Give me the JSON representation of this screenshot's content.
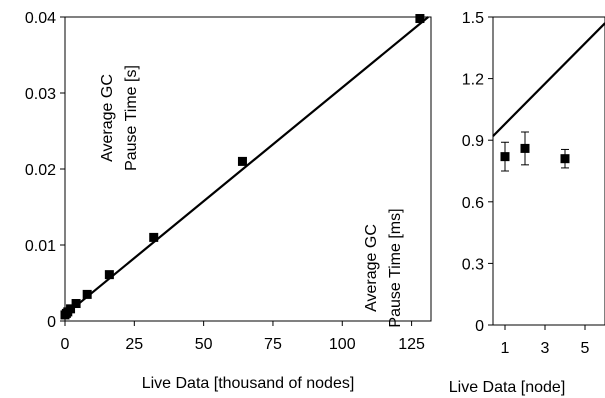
{
  "chart_data": [
    {
      "type": "scatter",
      "xlabel": "Live Data [thousand of nodes]",
      "ylabel": "Average GC Pause Time [s]",
      "xlim": [
        0,
        132
      ],
      "ylim": [
        0,
        0.04
      ],
      "xticks": [
        0,
        25,
        50,
        75,
        100,
        125
      ],
      "xtick_labels": [
        "0",
        "25",
        "50",
        "75",
        "100",
        "125"
      ],
      "yticks": [
        0,
        0.01,
        0.02,
        0.03,
        0.04
      ],
      "ytick_labels": [
        "0",
        "0.01",
        "0.02",
        "0.03",
        "0.04"
      ],
      "grid": false,
      "series": [
        {
          "marker": "square",
          "x": [
            0,
            0.5,
            1,
            2,
            4,
            8,
            16,
            32,
            64,
            128
          ],
          "y": [
            0.0008,
            0.001,
            0.0012,
            0.0016,
            0.0023,
            0.0035,
            0.0061,
            0.011,
            0.021,
            0.0398
          ]
        }
      ],
      "fit_line": {
        "x": [
          0,
          131
        ],
        "y": [
          0.0008,
          0.04
        ]
      }
    },
    {
      "type": "scatter",
      "xlabel": "Live Data [node]",
      "ylabel": "Average GC Pause Time [ms]",
      "xlim": [
        0.4,
        6
      ],
      "ylim": [
        0,
        1.5
      ],
      "xticks": [
        1,
        3,
        5
      ],
      "xtick_labels": [
        "1",
        "3",
        "5"
      ],
      "yticks": [
        0,
        0.3,
        0.6,
        0.9,
        1.2,
        1.5
      ],
      "ytick_labels": [
        "0",
        "0.3",
        "0.6",
        "0.9",
        "1.2",
        "1.5"
      ],
      "grid": false,
      "series": [
        {
          "marker": "square",
          "x": [
            1,
            2,
            4
          ],
          "y": [
            0.82,
            0.86,
            0.81
          ],
          "error": [
            0.07,
            0.08,
            0.045
          ]
        }
      ],
      "fit_line": {
        "x": [
          0.4,
          6
        ],
        "y": [
          0.92,
          1.47
        ]
      }
    }
  ]
}
